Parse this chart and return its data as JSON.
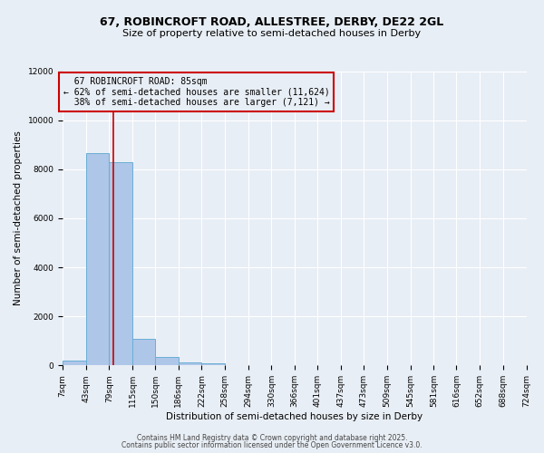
{
  "title_line1": "67, ROBINCROFT ROAD, ALLESTREE, DERBY, DE22 2GL",
  "title_line2": "Size of property relative to semi-detached houses in Derby",
  "xlabel": "Distribution of semi-detached houses by size in Derby",
  "ylabel": "Number of semi-detached properties",
  "footer_line1": "Contains HM Land Registry data © Crown copyright and database right 2025.",
  "footer_line2": "Contains public sector information licensed under the Open Government Licence v3.0.",
  "property_size": 85,
  "property_label": "67 ROBINCROFT ROAD: 85sqm",
  "pct_smaller": 62,
  "count_smaller": 11624,
  "pct_larger": 38,
  "count_larger": 7121,
  "bin_edges": [
    7,
    43,
    79,
    115,
    150,
    186,
    222,
    258,
    294,
    330,
    366,
    401,
    437,
    473,
    509,
    545,
    581,
    616,
    652,
    688,
    724
  ],
  "bin_counts": [
    200,
    8650,
    8300,
    1100,
    340,
    130,
    70,
    0,
    0,
    0,
    0,
    0,
    0,
    0,
    0,
    0,
    0,
    0,
    0,
    0
  ],
  "bar_color": "#aec6e8",
  "bar_edge_color": "#6aaed6",
  "red_line_color": "#cc0000",
  "annotation_box_color": "#cc0000",
  "background_color": "#e8eef5",
  "ylim": [
    0,
    12000
  ],
  "yticks": [
    0,
    2000,
    4000,
    6000,
    8000,
    10000,
    12000
  ],
  "title_fontsize": 9,
  "subtitle_fontsize": 8,
  "axis_label_fontsize": 7.5,
  "tick_fontsize": 6.5,
  "annotation_fontsize": 7,
  "footer_fontsize": 5.5
}
